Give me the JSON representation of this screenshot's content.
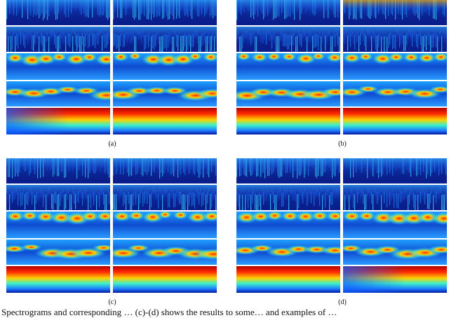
{
  "figure": {
    "panels": [
      {
        "label": "(a)"
      },
      {
        "label": "(b)"
      },
      {
        "label": "(c)"
      },
      {
        "label": "(d)"
      }
    ],
    "colormap": "jet",
    "rows_per_panel": 5,
    "columns_per_panel": 2
  },
  "caption_text": "Spectrograms and corresponding …    (c)-(d) shows the results to some…  and examples of …"
}
